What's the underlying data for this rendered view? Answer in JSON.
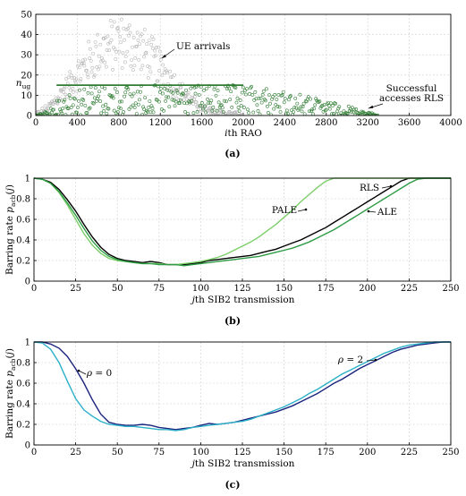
{
  "chart_data": [
    {
      "type": "scatter",
      "caption": "(a)",
      "xlabel": "ith RAO",
      "ylabel": "n_ug",
      "xlim": [
        0,
        4000
      ],
      "ylim": [
        0,
        50
      ],
      "xticks": [
        0,
        400,
        800,
        1200,
        1600,
        2000,
        2400,
        2800,
        3200,
        3600,
        4000
      ],
      "yticks": [
        0,
        10,
        20,
        30,
        40,
        50
      ],
      "grid": true,
      "annotations": [
        "UE arrivals",
        "Successful",
        "accesses RLS"
      ],
      "series": [
        {
          "name": "UE arrivals",
          "color": "#b8b8b8",
          "marker": "open-circle",
          "envelope": {
            "x": [
              0,
              100,
              200,
              300,
              400,
              500,
              600,
              700,
              800,
              900,
              1000,
              1100,
              1200,
              1300,
              1400,
              1500,
              1600,
              1700,
              1800,
              1900,
              2000
            ],
            "y": [
              0,
              3,
              8,
              14,
              20,
              26,
              31,
              34,
              36,
              35,
              33,
              29,
              24,
              18,
              12,
              7,
              4,
              2,
              1,
              0.5,
              0
            ]
          }
        },
        {
          "name": "Successful accesses RLS",
          "color": "#2e7d32",
          "marker": "open-circle",
          "envelope": {
            "x": [
              0,
              100,
              200,
              300,
              400,
              800,
              1200,
              1600,
              2000,
              2200,
              2400,
              2600,
              2800,
              3000,
              3200,
              3300
            ],
            "y": [
              0,
              2,
              7,
              12,
              15,
              15,
              15,
              15,
              15,
              14,
              12,
              10,
              7,
              5,
              2,
              0
            ]
          }
        }
      ]
    },
    {
      "type": "line",
      "caption": "(b)",
      "xlabel": "jth SIB2 transmission",
      "ylabel": "Barring rate p_acb(j)",
      "xlim": [
        0,
        250
      ],
      "ylim": [
        0,
        1
      ],
      "xticks": [
        0,
        25,
        50,
        75,
        100,
        125,
        150,
        175,
        200,
        225,
        250
      ],
      "yticks": [
        0,
        0.2,
        0.4,
        0.6,
        0.8,
        1
      ],
      "grid": true,
      "x": [
        0,
        5,
        10,
        15,
        20,
        25,
        30,
        35,
        40,
        45,
        50,
        55,
        60,
        65,
        70,
        75,
        80,
        85,
        90,
        95,
        100,
        105,
        110,
        115,
        120,
        125,
        130,
        135,
        140,
        145,
        150,
        155,
        160,
        165,
        170,
        175,
        180,
        185,
        190,
        195,
        200,
        205,
        210,
        215,
        220,
        225,
        230,
        235,
        240,
        245,
        250
      ],
      "series": [
        {
          "name": "RLS",
          "color": "#000000",
          "values": [
            1,
            0.99,
            0.96,
            0.89,
            0.79,
            0.68,
            0.55,
            0.43,
            0.33,
            0.26,
            0.22,
            0.2,
            0.19,
            0.18,
            0.19,
            0.18,
            0.16,
            0.16,
            0.16,
            0.17,
            0.18,
            0.2,
            0.21,
            0.22,
            0.23,
            0.24,
            0.25,
            0.27,
            0.29,
            0.31,
            0.34,
            0.37,
            0.4,
            0.44,
            0.48,
            0.52,
            0.57,
            0.62,
            0.67,
            0.72,
            0.77,
            0.82,
            0.87,
            0.92,
            0.97,
            1,
            1,
            1,
            1,
            1,
            1
          ]
        },
        {
          "name": "PALE",
          "color": "#7ccf6a",
          "values": [
            1,
            0.99,
            0.95,
            0.86,
            0.74,
            0.6,
            0.46,
            0.35,
            0.27,
            0.22,
            0.2,
            0.19,
            0.18,
            0.17,
            0.17,
            0.17,
            0.16,
            0.16,
            0.17,
            0.18,
            0.19,
            0.21,
            0.23,
            0.26,
            0.3,
            0.34,
            0.38,
            0.43,
            0.49,
            0.55,
            0.62,
            0.69,
            0.77,
            0.84,
            0.91,
            0.97,
            1,
            1,
            1,
            1,
            1,
            1,
            1,
            1,
            1,
            1,
            1,
            1,
            1,
            1,
            1
          ]
        },
        {
          "name": "ALE",
          "color": "#2e9c45",
          "values": [
            1,
            0.99,
            0.95,
            0.87,
            0.76,
            0.64,
            0.51,
            0.39,
            0.3,
            0.24,
            0.21,
            0.19,
            0.18,
            0.17,
            0.17,
            0.16,
            0.16,
            0.16,
            0.15,
            0.16,
            0.17,
            0.18,
            0.19,
            0.2,
            0.21,
            0.22,
            0.23,
            0.24,
            0.26,
            0.28,
            0.3,
            0.32,
            0.35,
            0.38,
            0.42,
            0.46,
            0.5,
            0.55,
            0.6,
            0.65,
            0.7,
            0.75,
            0.8,
            0.85,
            0.9,
            0.95,
            0.99,
            1,
            1,
            1,
            1
          ]
        }
      ]
    },
    {
      "type": "line",
      "caption": "(c)",
      "xlabel": "jth SIB2 transmission",
      "ylabel": "Barring rate p_acb(j)",
      "xlim": [
        0,
        250
      ],
      "ylim": [
        0,
        1
      ],
      "xticks": [
        0,
        25,
        50,
        75,
        100,
        125,
        150,
        175,
        200,
        225,
        250
      ],
      "yticks": [
        0,
        0.2,
        0.4,
        0.6,
        0.8,
        1
      ],
      "grid": true,
      "x": [
        0,
        5,
        10,
        15,
        20,
        25,
        30,
        35,
        40,
        45,
        50,
        55,
        60,
        65,
        70,
        75,
        80,
        85,
        90,
        95,
        100,
        105,
        110,
        115,
        120,
        125,
        130,
        135,
        140,
        145,
        150,
        155,
        160,
        165,
        170,
        175,
        180,
        185,
        190,
        195,
        200,
        205,
        210,
        215,
        220,
        225,
        230,
        235,
        240,
        245,
        250
      ],
      "series": [
        {
          "name": "ρ = 0",
          "color": "#1a237e",
          "values": [
            1,
            1,
            0.98,
            0.94,
            0.86,
            0.74,
            0.6,
            0.44,
            0.3,
            0.22,
            0.2,
            0.19,
            0.19,
            0.2,
            0.19,
            0.17,
            0.16,
            0.15,
            0.16,
            0.17,
            0.19,
            0.21,
            0.2,
            0.21,
            0.22,
            0.24,
            0.26,
            0.28,
            0.3,
            0.32,
            0.35,
            0.38,
            0.42,
            0.46,
            0.5,
            0.55,
            0.6,
            0.64,
            0.69,
            0.74,
            0.78,
            0.82,
            0.86,
            0.9,
            0.93,
            0.95,
            0.97,
            0.98,
            0.99,
            1,
            1
          ]
        },
        {
          "name": "ρ = 2",
          "color": "#2bb0c8",
          "values": [
            1,
            0.99,
            0.93,
            0.8,
            0.62,
            0.45,
            0.34,
            0.28,
            0.23,
            0.2,
            0.19,
            0.18,
            0.18,
            0.17,
            0.16,
            0.15,
            0.15,
            0.14,
            0.15,
            0.17,
            0.18,
            0.19,
            0.2,
            0.21,
            0.22,
            0.23,
            0.25,
            0.28,
            0.31,
            0.34,
            0.37,
            0.41,
            0.45,
            0.5,
            0.54,
            0.59,
            0.64,
            0.69,
            0.73,
            0.77,
            0.81,
            0.85,
            0.89,
            0.92,
            0.95,
            0.97,
            0.98,
            0.99,
            1,
            1,
            1
          ]
        }
      ]
    }
  ]
}
